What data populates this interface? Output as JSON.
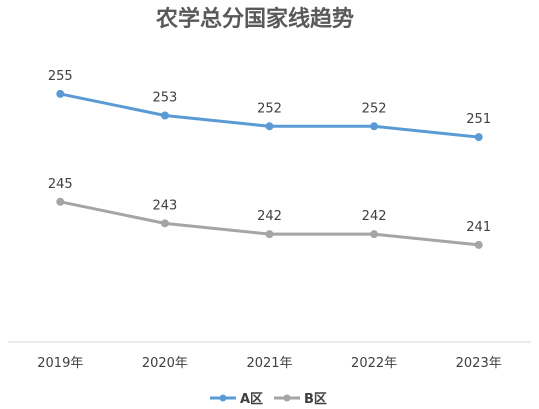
{
  "chart_data": {
    "type": "line",
    "title": "农学总分国家线趋势",
    "xlabel": "",
    "ylabel": "",
    "categories": [
      "2019年",
      "2020年",
      "2021年",
      "2022年",
      "2023年"
    ],
    "series": [
      {
        "name": "A区",
        "values": [
          255,
          253,
          252,
          252,
          251
        ],
        "color": "#5B9BD5"
      },
      {
        "name": "B区",
        "values": [
          245,
          243,
          242,
          242,
          241
        ],
        "color": "#A5A5A5"
      }
    ],
    "ylim": [
      232,
      260
    ],
    "grid": false,
    "legend": "bottom",
    "axis_color": "#D9D9D9"
  }
}
